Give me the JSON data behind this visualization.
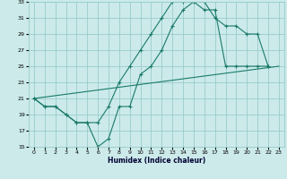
{
  "xlabel": "Humidex (Indice chaleur)",
  "bg_color": "#cceaea",
  "grid_color": "#99cccc",
  "line_color": "#1a7a6a",
  "xlim": [
    -0.5,
    23.5
  ],
  "ylim": [
    15,
    33
  ],
  "xticks": [
    0,
    1,
    2,
    3,
    4,
    5,
    6,
    7,
    8,
    9,
    10,
    11,
    12,
    13,
    14,
    15,
    16,
    17,
    18,
    19,
    20,
    21,
    22,
    23
  ],
  "yticks": [
    15,
    17,
    19,
    21,
    23,
    25,
    27,
    29,
    31,
    33
  ],
  "line1_x": [
    0,
    1,
    2,
    3,
    4,
    5,
    6,
    7,
    8,
    9,
    10,
    11,
    12,
    13,
    14,
    15,
    16,
    17,
    18,
    19,
    20,
    21,
    22
  ],
  "line1_y": [
    21,
    20,
    20,
    19,
    18,
    18,
    18,
    20,
    23,
    25,
    27,
    29,
    31,
    33,
    33,
    33,
    32,
    32,
    25,
    25,
    25,
    25,
    25
  ],
  "line2_x": [
    0,
    1,
    2,
    3,
    4,
    5,
    6,
    7,
    8,
    9,
    10,
    11,
    12,
    13,
    14,
    15,
    16,
    17,
    18,
    19,
    20,
    21,
    22
  ],
  "line2_y": [
    21,
    20,
    20,
    19,
    18,
    18,
    15,
    16,
    20,
    20,
    24,
    25,
    27,
    30,
    32,
    33,
    33,
    31,
    30,
    30,
    29,
    29,
    25
  ],
  "line3_x": [
    0,
    23
  ],
  "line3_y": [
    21,
    25
  ]
}
